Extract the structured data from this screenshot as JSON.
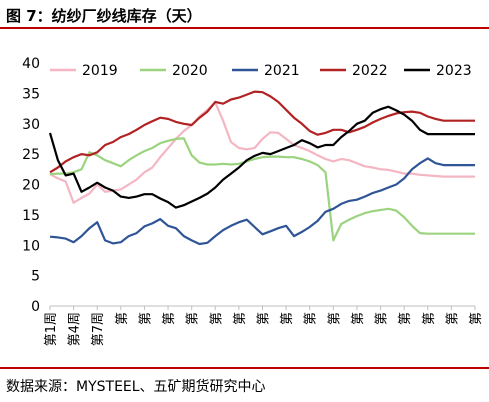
{
  "title": "图 7：纺纱厂纱线库存（天）",
  "source": "数据来源：MYSTEEL、五矿期货研究中心",
  "colors": {
    "rule": "#c00000",
    "axis": "#bfbfbf"
  },
  "chart_data": {
    "type": "line",
    "ylim": [
      0,
      40
    ],
    "yticks": [
      0,
      5,
      10,
      15,
      20,
      25,
      30,
      35,
      40
    ],
    "xticks": [
      "第1周",
      "第4周",
      "第7周",
      "第",
      "第",
      "第",
      "第",
      "第",
      "第",
      "第",
      "第",
      "第",
      "第",
      "第",
      "第",
      "第",
      "第",
      "第",
      "第"
    ],
    "x": [
      1,
      2,
      3,
      4,
      5,
      6,
      7,
      8,
      9,
      10,
      11,
      12,
      13,
      14,
      15,
      16,
      17,
      18,
      19,
      20,
      21,
      22,
      23,
      24,
      25,
      26,
      27,
      28,
      29,
      30,
      31,
      32,
      33,
      34,
      35,
      36,
      37,
      38,
      39,
      40,
      41,
      42,
      43,
      44,
      45,
      46,
      47,
      48,
      49,
      50,
      51,
      52,
      53,
      54,
      55
    ],
    "legend_position": "top",
    "series": [
      {
        "name": "2019",
        "color": "#f4b6c2",
        "values": [
          21.7,
          21.0,
          20.5,
          17.0,
          17.8,
          18.5,
          20.0,
          18.8,
          19.0,
          19.2,
          20.0,
          20.8,
          22.0,
          22.8,
          24.5,
          26.0,
          27.5,
          28.8,
          29.8,
          31.2,
          32.3,
          33.5,
          30.5,
          27.0,
          26.0,
          25.8,
          26.0,
          27.5,
          28.6,
          28.5,
          27.5,
          26.5,
          26.0,
          25.5,
          24.8,
          24.2,
          23.8,
          24.2,
          24.0,
          23.5,
          23.0,
          22.8,
          22.5,
          22.4,
          22.1,
          21.8,
          21.8,
          21.6,
          21.5,
          21.4,
          21.3,
          21.3,
          21.3,
          21.3,
          21.3
        ]
      },
      {
        "name": "2020",
        "color": "#9bd37f",
        "values": [
          21.7,
          21.8,
          21.8,
          22.0,
          22.5,
          25.3,
          24.8,
          24.0,
          23.5,
          23.0,
          24.0,
          24.8,
          25.5,
          26.0,
          26.8,
          27.2,
          27.5,
          27.6,
          24.8,
          23.6,
          23.3,
          23.3,
          23.4,
          23.3,
          23.4,
          23.8,
          24.2,
          24.5,
          24.6,
          24.6,
          24.5,
          24.5,
          24.2,
          23.8,
          23.2,
          22.0,
          10.8,
          13.5,
          14.2,
          14.8,
          15.3,
          15.6,
          15.8,
          16.0,
          15.7,
          14.6,
          13.2,
          12.0,
          11.9,
          11.9,
          11.9,
          11.9,
          11.9,
          11.9,
          11.9
        ]
      },
      {
        "name": "2021",
        "color": "#2f5597",
        "values": [
          11.4,
          11.3,
          11.1,
          10.5,
          11.5,
          12.8,
          13.8,
          10.8,
          10.3,
          10.5,
          11.5,
          12.0,
          13.1,
          13.6,
          14.3,
          13.2,
          12.8,
          11.5,
          10.8,
          10.2,
          10.4,
          11.5,
          12.5,
          13.2,
          13.8,
          14.2,
          13.0,
          11.8,
          12.3,
          12.8,
          13.2,
          11.5,
          12.2,
          13.0,
          14.0,
          15.5,
          16.0,
          16.8,
          17.3,
          17.5,
          18.0,
          18.6,
          19.0,
          19.5,
          20.0,
          21.0,
          22.5,
          23.5,
          24.3,
          23.5,
          23.2,
          23.2,
          23.2,
          23.2,
          23.2
        ]
      },
      {
        "name": "2022",
        "color": "#b22222",
        "values": [
          22.0,
          22.8,
          23.8,
          24.5,
          25.0,
          24.8,
          25.3,
          26.5,
          27.0,
          27.8,
          28.3,
          29.0,
          29.8,
          30.4,
          31.0,
          30.8,
          30.3,
          30.0,
          29.8,
          31.0,
          32.0,
          33.6,
          33.3,
          34.0,
          34.3,
          34.8,
          35.3,
          35.2,
          34.5,
          33.6,
          32.3,
          31.0,
          30.0,
          28.8,
          28.2,
          28.5,
          29.0,
          29.0,
          28.6,
          29.0,
          29.5,
          30.2,
          30.8,
          31.3,
          31.7,
          31.9,
          32.0,
          31.8,
          31.2,
          30.8,
          30.5,
          30.5,
          30.5,
          30.5,
          30.5
        ]
      },
      {
        "name": "2023",
        "color": "#000000",
        "values": [
          28.5,
          24.0,
          21.5,
          21.8,
          18.8,
          19.5,
          20.3,
          19.5,
          19.0,
          18.0,
          17.8,
          18.0,
          18.4,
          18.4,
          17.7,
          17.1,
          16.2,
          16.6,
          17.2,
          17.8,
          18.5,
          19.5,
          20.8,
          21.8,
          22.8,
          24.0,
          24.7,
          25.2,
          25.0,
          25.5,
          26.0,
          26.5,
          27.3,
          26.8,
          26.1,
          26.5,
          26.5,
          27.8,
          28.8,
          30.0,
          30.5,
          31.8,
          32.4,
          32.8,
          32.2,
          31.5,
          30.5,
          29.0,
          28.3,
          28.3,
          28.3,
          28.3,
          28.3,
          28.3,
          28.3
        ]
      }
    ]
  }
}
